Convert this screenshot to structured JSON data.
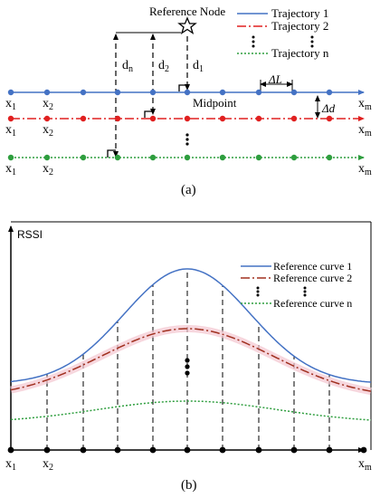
{
  "panel_a": {
    "reference_node_label": "Reference Node",
    "midpoint_label": "Midpoint",
    "distance_labels": {
      "dn": "d",
      "dn_sub": "n",
      "d2": "d",
      "d2_sub": "2",
      "d1": "d",
      "d1_sub": "1"
    },
    "delta_L": "ΔL",
    "delta_d": "Δd",
    "legend": [
      {
        "label": "Trajectory 1",
        "color": "#4472c4",
        "style": "solid"
      },
      {
        "label": "Trajectory 2",
        "color": "#e02020",
        "style": "dashdot"
      },
      {
        "label": "Trajectory n",
        "color": "#2e9e3e",
        "style": "dotted"
      }
    ],
    "x_first": "x",
    "x_first_sub": "1",
    "x_second": "x",
    "x_second_sub": "2",
    "x_last": "x",
    "x_last_sub": "m",
    "caption": "(a)"
  },
  "panel_b": {
    "y_axis_label": "RSSI",
    "legend": [
      {
        "label": "Reference curve 1",
        "color": "#4472c4",
        "style": "solid"
      },
      {
        "label": "Reference curve 2",
        "color": "#a0301f",
        "style": "dashdot"
      },
      {
        "label": "Reference curve n",
        "color": "#2e9e3e",
        "style": "dotted"
      }
    ],
    "x_first": "x",
    "x_first_sub": "1",
    "x_second": "x",
    "x_second_sub": "2",
    "x_last": "x",
    "x_last_sub": "m",
    "caption": "(b)"
  }
}
